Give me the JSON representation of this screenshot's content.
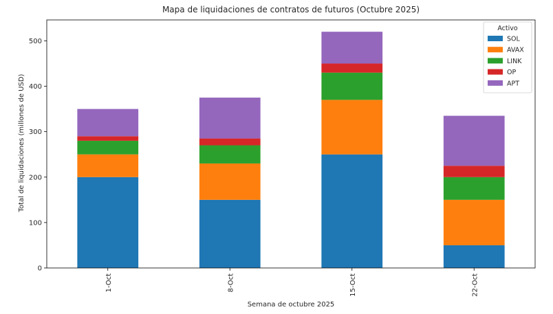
{
  "chart_data": {
    "type": "bar",
    "stacked": true,
    "title": "Mapa de liquidaciones de contratos de futuros (Octubre 2025)",
    "xlabel": "Semana de octubre 2025",
    "ylabel": "Total de liquidaciones (millones de USD)",
    "categories": [
      "1-Oct",
      "8-Oct",
      "15-Oct",
      "22-Oct"
    ],
    "ylim": [
      0,
      546
    ],
    "yticks": [
      0,
      100,
      200,
      300,
      400,
      500
    ],
    "grid": false,
    "legend": {
      "title": "Activo",
      "placement": "top-right"
    },
    "series": [
      {
        "name": "SOL",
        "color": "#1f77b4",
        "values": [
          200,
          150,
          250,
          50
        ]
      },
      {
        "name": "AVAX",
        "color": "#ff7f0e",
        "values": [
          50,
          80,
          120,
          100
        ]
      },
      {
        "name": "LINK",
        "color": "#2ca02c",
        "values": [
          30,
          40,
          60,
          50
        ]
      },
      {
        "name": "OP",
        "color": "#d62728",
        "values": [
          10,
          15,
          20,
          25
        ]
      },
      {
        "name": "APT",
        "color": "#9467bd",
        "values": [
          60,
          90,
          70,
          110
        ]
      }
    ]
  }
}
